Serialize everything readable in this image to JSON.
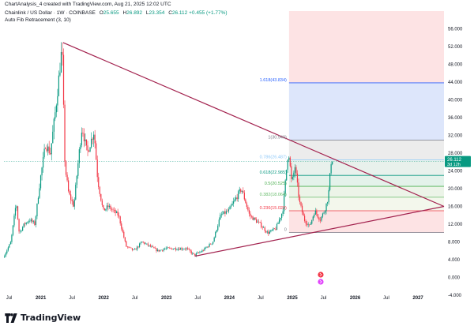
{
  "caption": "ChartAnalysis_4 created with TradingView.com, Aug 21, 2025 12:02 UTC",
  "symbol": {
    "name": "Chainlink / US Dollar · 1W · COINBASE",
    "o_label": "O",
    "o": "25.655",
    "h_label": "H",
    "h": "26.892",
    "l_label": "L",
    "l": "23.354",
    "c_label": "C",
    "c": "26.112",
    "change": "+0.455 (+1.77%)"
  },
  "indicator": "Auto Fib Retracement (3, 10)",
  "footer": {
    "brand": "TradingView",
    "logo": "tradingview-logo-icon"
  },
  "colors": {
    "up": "#089981",
    "down": "#f23645",
    "trendline": "#a3234f",
    "price_badge": "#089981"
  },
  "chart_data": {
    "type": "candlestick",
    "title": "",
    "y_axis": {
      "position": "right",
      "scale": "linear",
      "min": -4,
      "max": 60,
      "tick_labels": [
        "56.000",
        "52.000",
        "48.000",
        "44.000",
        "40.000",
        "36.000",
        "32.000",
        "28.000",
        "24.000",
        "20.000",
        "16.000",
        "12.000",
        "8.000",
        "4.000",
        "0.000",
        "-4.000"
      ]
    },
    "x_axis": {
      "tick_labels": [
        "Jul",
        "2021",
        "Jul",
        "2022",
        "Jul",
        "2023",
        "Jul",
        "2024",
        "Jul",
        "2025",
        "Jul",
        "2026",
        "Jul",
        "2027"
      ],
      "tick_dates": [
        "2020-07-01",
        "2021-01-01",
        "2021-07-01",
        "2022-01-01",
        "2022-07-01",
        "2023-01-01",
        "2023-07-01",
        "2024-01-01",
        "2024-07-01",
        "2025-01-01",
        "2025-07-01",
        "2026-01-01",
        "2026-07-01",
        "2027-01-01"
      ],
      "range": [
        "2020-06-01",
        "2027-06-01"
      ]
    },
    "price_points": [
      [
        "2020-06-01",
        4.5
      ],
      [
        "2020-07-15",
        8
      ],
      [
        "2020-08-15",
        17
      ],
      [
        "2020-09-01",
        10
      ],
      [
        "2020-10-01",
        12
      ],
      [
        "2020-11-01",
        13
      ],
      [
        "2020-12-01",
        12
      ],
      [
        "2021-01-01",
        22
      ],
      [
        "2021-02-01",
        30
      ],
      [
        "2021-03-01",
        28
      ],
      [
        "2021-04-01",
        38
      ],
      [
        "2021-05-08",
        52
      ],
      [
        "2021-05-25",
        25
      ],
      [
        "2021-06-15",
        19
      ],
      [
        "2021-07-15",
        16
      ],
      [
        "2021-08-15",
        28
      ],
      [
        "2021-09-01",
        34
      ],
      [
        "2021-10-01",
        28
      ],
      [
        "2021-11-10",
        33
      ],
      [
        "2021-12-01",
        22
      ],
      [
        "2022-01-01",
        15
      ],
      [
        "2022-02-01",
        16
      ],
      [
        "2022-03-01",
        15
      ],
      [
        "2022-04-01",
        14
      ],
      [
        "2022-05-15",
        7
      ],
      [
        "2022-07-01",
        6
      ],
      [
        "2022-08-15",
        8
      ],
      [
        "2022-10-01",
        7
      ],
      [
        "2022-11-15",
        6
      ],
      [
        "2023-01-01",
        6.5
      ],
      [
        "2023-03-01",
        6.5
      ],
      [
        "2023-05-01",
        6.5
      ],
      [
        "2023-06-15",
        5
      ],
      [
        "2023-08-01",
        6
      ],
      [
        "2023-10-01",
        8
      ],
      [
        "2023-11-15",
        14
      ],
      [
        "2024-01-01",
        15
      ],
      [
        "2024-03-15",
        20
      ],
      [
        "2024-05-01",
        14
      ],
      [
        "2024-07-01",
        12
      ],
      [
        "2024-08-15",
        10
      ],
      [
        "2024-10-01",
        11
      ],
      [
        "2024-11-10",
        15
      ],
      [
        "2024-12-13",
        29
      ],
      [
        "2025-01-01",
        21
      ],
      [
        "2025-01-20",
        25
      ],
      [
        "2025-02-15",
        17
      ],
      [
        "2025-03-15",
        13
      ],
      [
        "2025-04-15",
        11.5
      ],
      [
        "2025-05-15",
        15
      ],
      [
        "2025-06-15",
        13
      ],
      [
        "2025-07-10",
        15
      ],
      [
        "2025-08-01",
        18
      ],
      [
        "2025-08-18",
        26.1
      ]
    ],
    "fib_retracement": {
      "start_date": "2024-12-13",
      "end_date": "2027-06-01",
      "levels": [
        {
          "ratio": "1.618",
          "value": 43.834,
          "label": "1.618(43.834)",
          "line": "#2962ff",
          "fill": "#dde6fb"
        },
        {
          "ratio": "1",
          "value": 30.94,
          "label": "1(30.940)",
          "line": "#787b86",
          "fill": "#ececec"
        },
        {
          "ratio": "0.786",
          "value": 26.487,
          "label": "0.786(26.487)",
          "line": "#90caf9",
          "fill": "#e8f1ec"
        },
        {
          "ratio": "0.618",
          "value": 22.985,
          "label": "0.618(22.985)",
          "line": "#089981",
          "fill": "#e3f2ea"
        },
        {
          "ratio": "0.5",
          "value": 20.525,
          "label": "0.5(20.525)",
          "line": "#4caf50",
          "fill": "#ecf4e8"
        },
        {
          "ratio": "0.382",
          "value": 18.064,
          "label": "0.382(18.064)",
          "line": "#66bb6a",
          "fill": "#f3f7ec"
        },
        {
          "ratio": "0.236",
          "value": 15.02,
          "label": "0.236(15.020)",
          "line": "#f23645",
          "fill": "#fde3e4"
        },
        {
          "ratio": "0",
          "value": 10.11,
          "label": "0",
          "line": "#787b86",
          "fill": "#fde3e4"
        }
      ],
      "top_red_zone_fill": "#fde3e4"
    },
    "trendlines": [
      {
        "name": "upper",
        "from": [
          "2021-05-10",
          52.9
        ],
        "to": [
          "2027-06-01",
          16
        ]
      },
      {
        "name": "lower",
        "from": [
          "2023-06-15",
          4.8
        ],
        "to": [
          "2027-06-01",
          16
        ]
      }
    ],
    "last_price": {
      "value": "26.112",
      "countdown": "3d 12h"
    }
  }
}
